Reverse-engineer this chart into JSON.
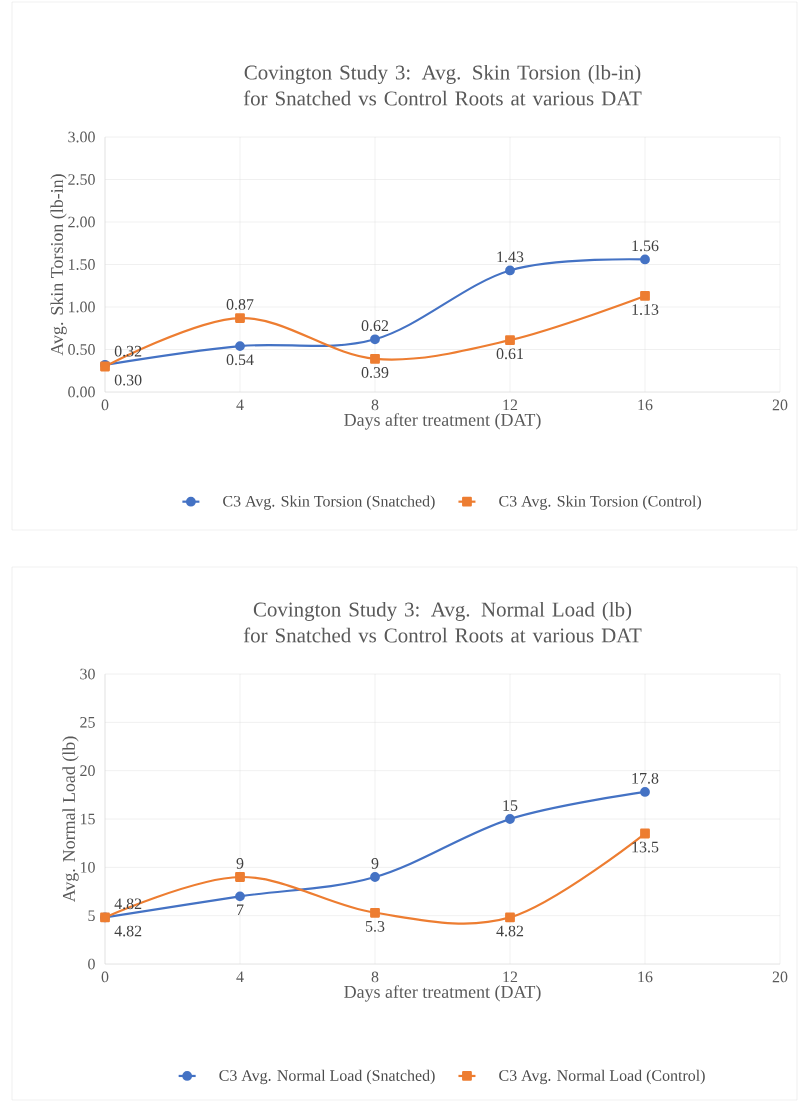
{
  "chart_data": [
    {
      "type": "line",
      "title": "Covington Study 3: Avg. Skin Torsion (lb-in) for Snatched vs Control Roots at various DAT",
      "xlabel": "Days after treatment (DAT)",
      "ylabel": "Avg. Skin Torsion (lb-in)",
      "x": [
        0,
        4,
        8,
        12,
        16
      ],
      "xlim": [
        0,
        20
      ],
      "xticks": [
        0,
        4,
        8,
        12,
        16,
        20
      ],
      "ylim": [
        0,
        3
      ],
      "yticks": [
        {
          "value": 0,
          "label": "0.00"
        },
        {
          "value": 0.5,
          "label": "0.50"
        },
        {
          "value": 1,
          "label": "1.00"
        },
        {
          "value": 1.5,
          "label": "1.50"
        },
        {
          "value": 2,
          "label": "2.00"
        },
        {
          "value": 2.5,
          "label": "2.50"
        },
        {
          "value": 3,
          "label": "3.00"
        }
      ],
      "grid": true,
      "legend": "bottom",
      "series": [
        {
          "name": "C3 Avg. Skin Torsion (Snatched)",
          "color": "#4472c4",
          "marker": "circle",
          "values": [
            0.32,
            0.54,
            0.62,
            1.43,
            1.56
          ],
          "value_labels": [
            "0.32",
            "0.54",
            "0.62",
            "1.43",
            "1.56"
          ]
        },
        {
          "name": "C3 Avg. Skin Torsion (Control)",
          "color": "#ed7d31",
          "marker": "square",
          "values": [
            0.3,
            0.87,
            0.39,
            0.61,
            1.13
          ],
          "value_labels": [
            "0.30",
            "0.87",
            "0.39",
            "0.61",
            "1.13"
          ]
        }
      ]
    },
    {
      "type": "line",
      "title": "Covington Study 3: Avg. Normal Load (lb) for Snatched vs Control Roots at various DAT",
      "xlabel": "Days after treatment (DAT)",
      "ylabel": "Avg. Normal Load (lb)",
      "x": [
        0,
        4,
        8,
        12,
        16
      ],
      "xlim": [
        0,
        20
      ],
      "xticks": [
        0,
        4,
        8,
        12,
        16,
        20
      ],
      "ylim": [
        0,
        30
      ],
      "yticks": [
        0,
        5,
        10,
        15,
        20,
        25,
        30
      ],
      "grid": true,
      "legend": "bottom",
      "series": [
        {
          "name": "C3 Avg. Normal Load (Snatched)",
          "color": "#4472c4",
          "marker": "circle",
          "values": [
            4.82,
            7,
            9,
            15,
            17.8
          ],
          "value_labels": [
            "4.82",
            "7",
            "9",
            "15",
            "17.8"
          ]
        },
        {
          "name": "C3 Avg. Normal Load (Control)",
          "color": "#ed7d31",
          "marker": "square",
          "values": [
            4.82,
            9,
            5.3,
            4.82,
            13.5
          ],
          "value_labels": [
            "4.82",
            "9",
            "5.3",
            "4.82",
            "13.5"
          ]
        }
      ]
    }
  ]
}
